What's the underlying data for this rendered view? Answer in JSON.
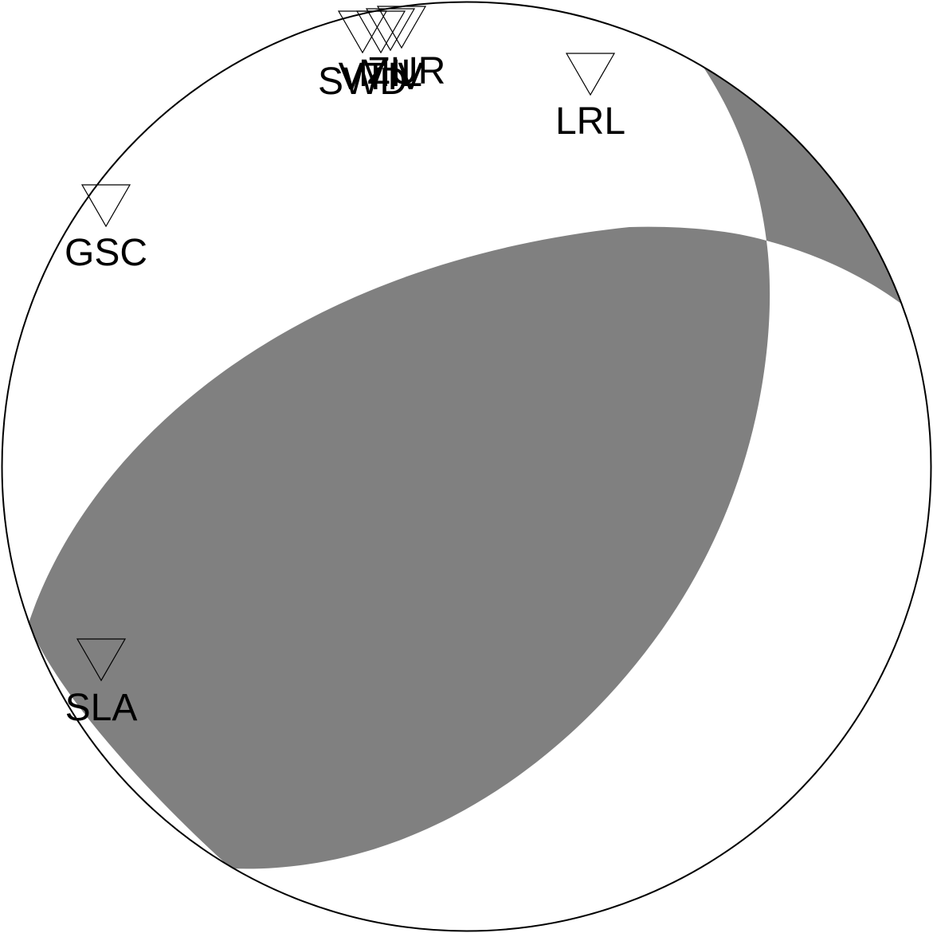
{
  "colors": {
    "compressional_fill": "#808080",
    "dilatational_fill": "#ffffff",
    "outline": "#000000"
  },
  "stations": [
    {
      "code": "SWD",
      "symbol": "triangle-down-icon",
      "filled": false
    },
    {
      "code": "VTIV",
      "symbol": "triangle-down-icon",
      "filled": false
    },
    {
      "code": "MIL",
      "symbol": "triangle-down-icon",
      "filled": false
    },
    {
      "code": "ZUR",
      "symbol": "triangle-down-icon",
      "filled": false
    },
    {
      "code": "LRL",
      "symbol": "triangle-down-icon",
      "filled": false
    },
    {
      "code": "GSC",
      "symbol": "triangle-down-icon",
      "filled": false
    },
    {
      "code": "SLA",
      "symbol": "triangle-down-icon",
      "filled": false
    }
  ]
}
